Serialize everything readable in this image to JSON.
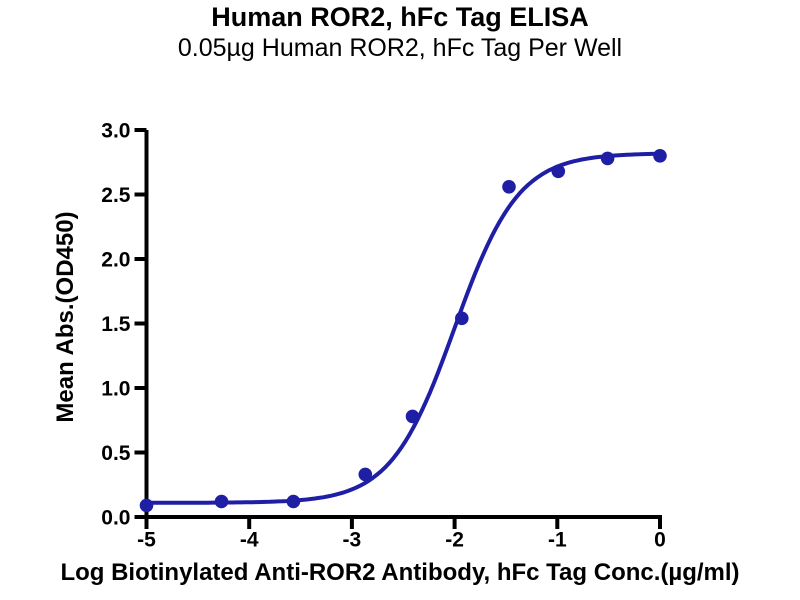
{
  "chart_data": {
    "type": "scatter",
    "title": "Human ROR2, hFc Tag ELISA",
    "subtitle": "0.05µg Human ROR2, hFc Tag Per Well",
    "xlabel": "Log Biotinylated Anti-ROR2 Antibody, hFc Tag Conc.(µg/ml)",
    "ylabel": "Mean Abs.(OD450)",
    "xlim": [
      -5,
      0
    ],
    "ylim": [
      0,
      3.0
    ],
    "x_ticks": [
      -5,
      -4,
      -3,
      -2,
      -1,
      0
    ],
    "x_tick_labels": [
      "-5",
      "-4",
      "-3",
      "-2",
      "-1",
      "0"
    ],
    "y_ticks": [
      0,
      0.5,
      1.0,
      1.5,
      2.0,
      2.5,
      3.0
    ],
    "y_tick_labels": [
      "0.0",
      "0.5",
      "1.0",
      "1.5",
      "2.0",
      "2.5",
      "3.0"
    ],
    "grid": false,
    "legend_position": "none",
    "series": [
      {
        "name": "Biotinylated Anti-ROR2 Antibody, hFc Tag",
        "marker": "circle",
        "color": "#1f1fa6",
        "points": [
          [
            -5.0,
            0.09
          ],
          [
            -4.27,
            0.12
          ],
          [
            -3.57,
            0.12
          ],
          [
            -2.87,
            0.33
          ],
          [
            -2.41,
            0.78
          ],
          [
            -1.93,
            1.54
          ],
          [
            -1.47,
            2.56
          ],
          [
            -0.99,
            2.68
          ],
          [
            -0.51,
            2.78
          ],
          [
            0.0,
            2.8
          ]
        ]
      }
    ],
    "curve_fit": {
      "model": "four_parameter_logistic",
      "bottom": 0.11,
      "top": 2.82,
      "log_ec50": -2.0,
      "hill_slope": 1.4,
      "color": "#1f1fa6"
    },
    "colors": {
      "axis": "#000000",
      "text": "#000000",
      "background": "#ffffff",
      "series": "#1f1fa6"
    }
  }
}
